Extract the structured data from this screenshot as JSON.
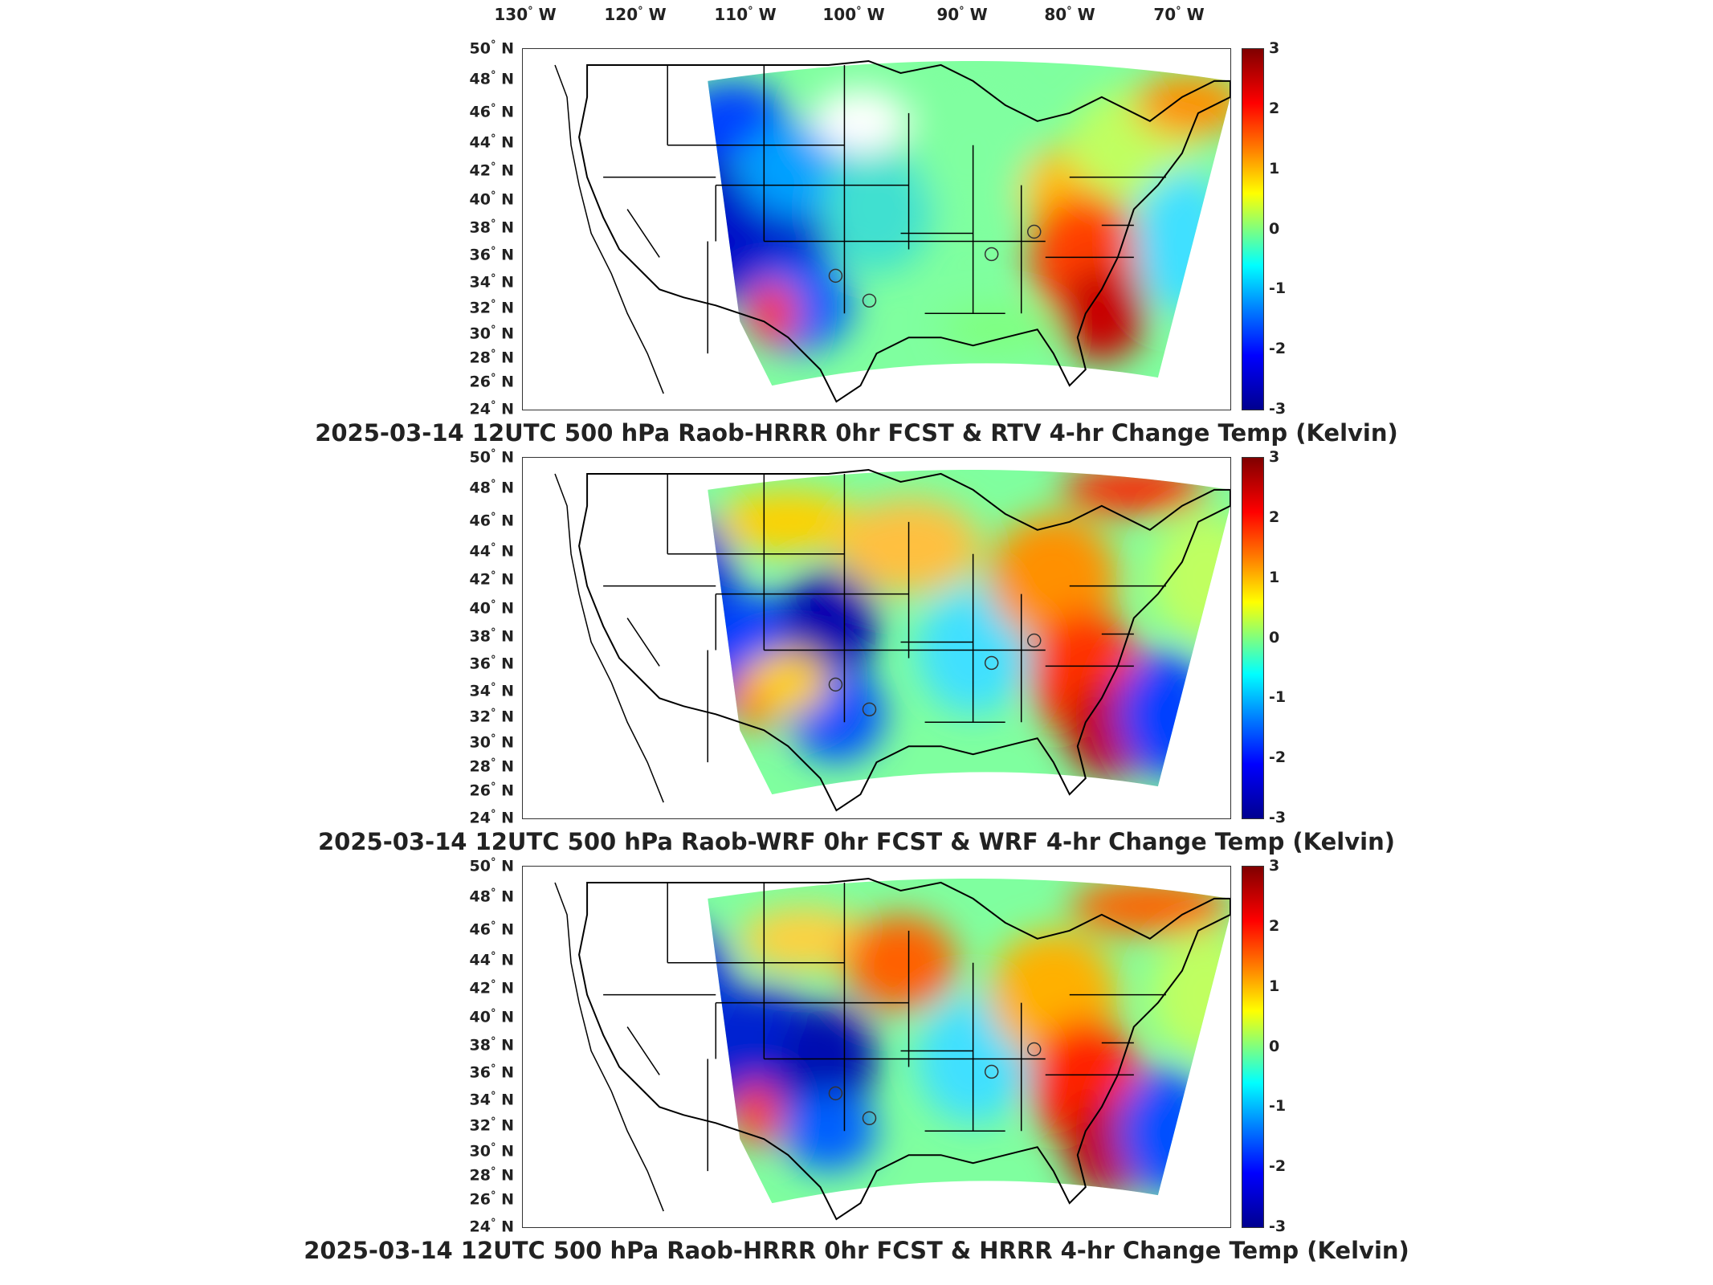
{
  "lon_labels": [
    {
      "num": "130",
      "unit": " W"
    },
    {
      "num": "120",
      "unit": " W"
    },
    {
      "num": "110",
      "unit": " W"
    },
    {
      "num": "100",
      "unit": " W"
    },
    {
      "num": "90",
      "unit": " W"
    },
    {
      "num": "80",
      "unit": " W"
    },
    {
      "num": "70",
      "unit": " W"
    }
  ],
  "lat_labels": [
    {
      "num": "50",
      "unit": " N"
    },
    {
      "num": "48",
      "unit": " N"
    },
    {
      "num": "46",
      "unit": " N"
    },
    {
      "num": "44",
      "unit": " N"
    },
    {
      "num": "42",
      "unit": " N"
    },
    {
      "num": "40",
      "unit": " N"
    },
    {
      "num": "38",
      "unit": " N"
    },
    {
      "num": "36",
      "unit": " N"
    },
    {
      "num": "34",
      "unit": " N"
    },
    {
      "num": "32",
      "unit": " N"
    },
    {
      "num": "30",
      "unit": " N"
    },
    {
      "num": "28",
      "unit": " N"
    },
    {
      "num": "26",
      "unit": " N"
    },
    {
      "num": "24",
      "unit": " N"
    }
  ],
  "colorbar": {
    "ticks": [
      "3",
      "2",
      "1",
      "0",
      "-1",
      "-2",
      "-3"
    ],
    "range": [
      -3,
      3
    ],
    "colormap": [
      "#00008f",
      "#0000ff",
      "#0080ff",
      "#00ffff",
      "#7fff7f",
      "#ffff00",
      "#ff8000",
      "#ff0000",
      "#800000"
    ]
  },
  "panels": [
    {
      "title": "2025-03-14 12UTC 500 hPa Raob-HRRR 0hr FCST & RTV 4-hr Change Temp (Kelvin)"
    },
    {
      "title": "2025-03-14 12UTC 500 hPa Raob-WRF 0hr FCST & WRF 4-hr Change Temp (Kelvin)"
    },
    {
      "title": "2025-03-14 12UTC 500 hPa Raob-HRRR 0hr FCST & HRRR 4-hr Change Temp (Kelvin)"
    }
  ]
}
